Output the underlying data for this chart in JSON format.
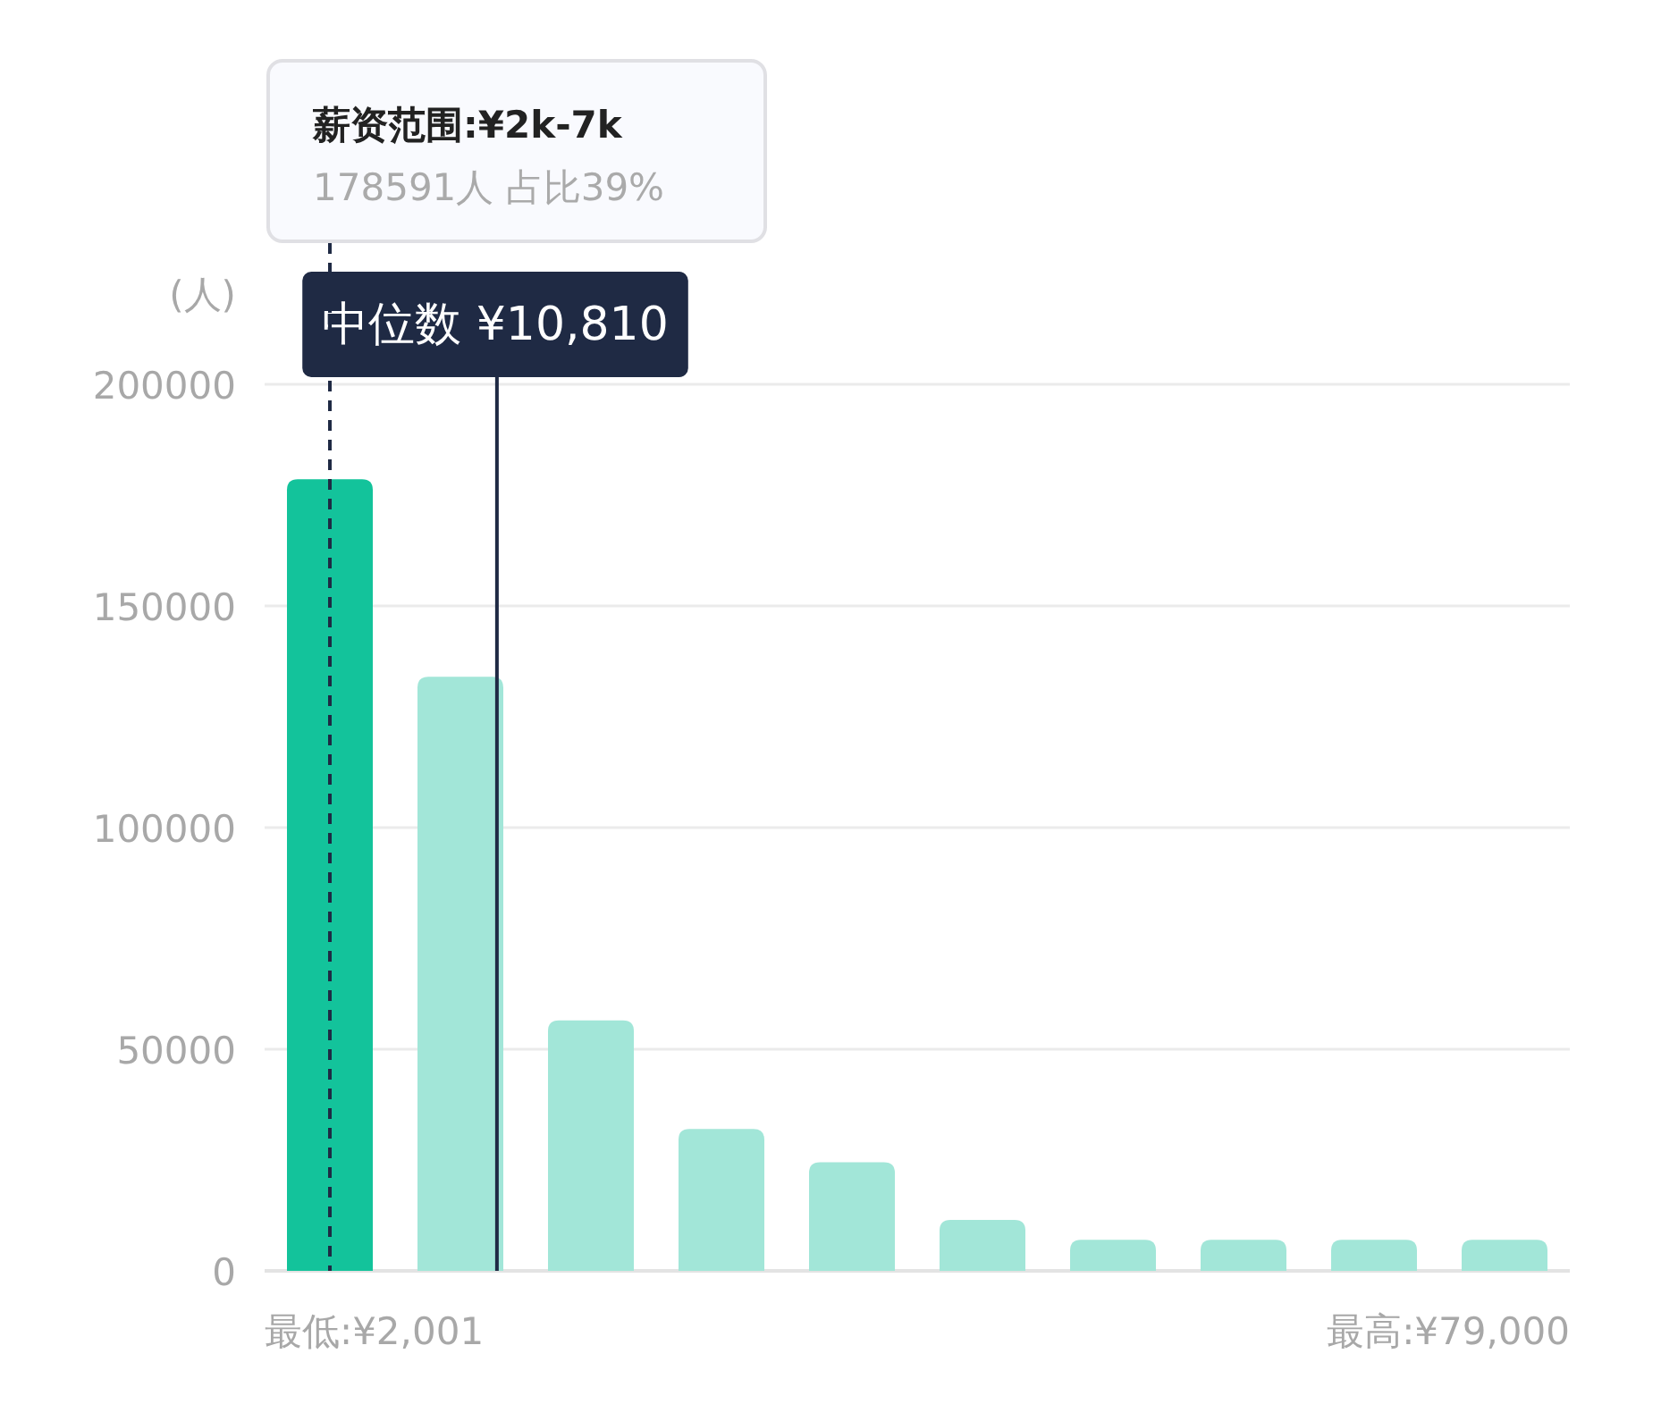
{
  "chart_data": {
    "type": "bar",
    "ylabel": "(人)",
    "categories": [
      null,
      null,
      null,
      null,
      null,
      null,
      null,
      null,
      null,
      null
    ],
    "values": [
      178591,
      134000,
      56500,
      32000,
      24500,
      11500,
      7000,
      7000,
      7000,
      7000
    ],
    "colors": [
      "#13c39b",
      "#a2e6d8",
      "#a2e6d8",
      "#a2e6d8",
      "#a2e6d8",
      "#a2e6d8",
      "#a2e6d8",
      "#a2e6d8",
      "#a2e6d8",
      "#a2e6d8"
    ],
    "ylim": [
      0,
      200000
    ],
    "yticks": [
      0,
      50000,
      100000,
      150000,
      200000
    ],
    "grid": "y",
    "annotations": [
      "薪资范围:¥2k-7k",
      "178591人  占比39%",
      "最低:¥2,001",
      "最高:¥79,000",
      "中位数 ¥10,810"
    ]
  }
}
